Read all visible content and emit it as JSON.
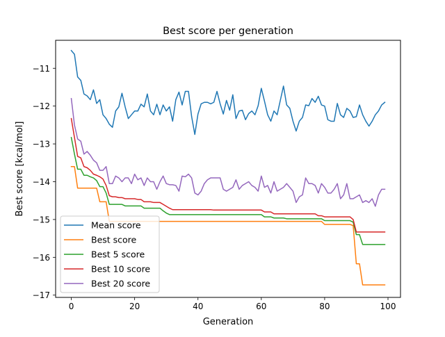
{
  "chart_data": {
    "type": "line",
    "title": "Best score per generation",
    "xlabel": "Generation",
    "ylabel": "Best score [kcal/mol]",
    "xlim": [
      -4.95,
      103.95
    ],
    "ylim": [
      -17.06,
      -10.26
    ],
    "xticks": [
      0,
      20,
      40,
      60,
      80,
      100
    ],
    "yticks": [
      -17,
      -16,
      -15,
      -14,
      -13,
      -12,
      -11
    ],
    "xtick_labels": [
      "0",
      "20",
      "40",
      "60",
      "80",
      "100"
    ],
    "ytick_labels": [
      "−17",
      "−16",
      "−15",
      "−14",
      "−13",
      "−12",
      "−11"
    ],
    "grid": false,
    "legend_position": "lower-left",
    "series": [
      {
        "name": "Mean score",
        "color": "#1f77b4",
        "values": [
          -10.53,
          -10.63,
          -11.23,
          -11.32,
          -11.68,
          -11.73,
          -11.83,
          -11.57,
          -11.93,
          -11.83,
          -12.23,
          -12.33,
          -12.48,
          -12.56,
          -12.13,
          -12.02,
          -11.66,
          -12.02,
          -12.33,
          -12.23,
          -12.13,
          -12.13,
          -11.95,
          -12.02,
          -11.68,
          -12.13,
          -12.23,
          -11.95,
          -12.23,
          -11.97,
          -12.13,
          -12.02,
          -12.4,
          -11.83,
          -11.63,
          -11.97,
          -11.61,
          -11.61,
          -12.28,
          -12.75,
          -12.21,
          -11.94,
          -11.9,
          -11.9,
          -11.94,
          -11.9,
          -11.61,
          -11.94,
          -12.21,
          -11.85,
          -12.11,
          -11.7,
          -12.33,
          -12.13,
          -12.11,
          -12.36,
          -12.2,
          -12.13,
          -12.23,
          -11.99,
          -11.53,
          -11.87,
          -12.23,
          -12.4,
          -12.13,
          -12.23,
          -11.85,
          -11.47,
          -11.97,
          -12.06,
          -12.4,
          -12.66,
          -12.4,
          -12.3,
          -11.97,
          -11.99,
          -11.8,
          -11.9,
          -11.74,
          -11.97,
          -12.0,
          -12.36,
          -12.4,
          -12.4,
          -11.93,
          -12.23,
          -12.3,
          -12.06,
          -12.13,
          -12.3,
          -12.28,
          -11.97,
          -12.23,
          -12.4,
          -12.53,
          -12.4,
          -12.23,
          -12.13,
          -11.97,
          -11.9
        ]
      },
      {
        "name": "Best score",
        "color": "#ff7f0e",
        "values": [
          -13.6,
          -13.6,
          -14.17,
          -14.17,
          -14.17,
          -14.17,
          -14.17,
          -14.17,
          -14.17,
          -14.53,
          -14.53,
          -14.53,
          -15.05,
          -15.05,
          -15.05,
          -15.05,
          -15.05,
          -15.05,
          -15.05,
          -15.05,
          -15.05,
          -15.05,
          -15.05,
          -15.05,
          -15.05,
          -15.05,
          -15.05,
          -15.05,
          -15.05,
          -15.05,
          -15.05,
          -15.05,
          -15.05,
          -15.05,
          -15.05,
          -15.05,
          -15.05,
          -15.05,
          -15.05,
          -15.05,
          -15.05,
          -15.05,
          -15.05,
          -15.05,
          -15.05,
          -15.05,
          -15.05,
          -15.05,
          -15.05,
          -15.05,
          -15.05,
          -15.05,
          -15.05,
          -15.05,
          -15.05,
          -15.05,
          -15.05,
          -15.05,
          -15.05,
          -15.05,
          -15.05,
          -15.05,
          -15.05,
          -15.05,
          -15.05,
          -15.05,
          -15.05,
          -15.05,
          -15.05,
          -15.05,
          -15.05,
          -15.05,
          -15.05,
          -15.05,
          -15.05,
          -15.05,
          -15.05,
          -15.05,
          -15.05,
          -15.05,
          -15.13,
          -15.13,
          -15.13,
          -15.13,
          -15.13,
          -15.13,
          -15.13,
          -15.13,
          -15.13,
          -15.16,
          -16.17,
          -16.17,
          -16.73,
          -16.73,
          -16.73,
          -16.73,
          -16.73,
          -16.73,
          -16.73,
          -16.73
        ]
      },
      {
        "name": "Best 5 score",
        "color": "#2ca02c",
        "values": [
          -12.83,
          -13.27,
          -13.67,
          -13.67,
          -13.83,
          -13.83,
          -13.87,
          -13.9,
          -13.97,
          -14.13,
          -14.13,
          -14.3,
          -14.6,
          -14.6,
          -14.6,
          -14.6,
          -14.6,
          -14.64,
          -14.64,
          -14.64,
          -14.64,
          -14.64,
          -14.64,
          -14.7,
          -14.7,
          -14.7,
          -14.7,
          -14.7,
          -14.7,
          -14.77,
          -14.83,
          -14.87,
          -14.87,
          -14.87,
          -14.87,
          -14.87,
          -14.87,
          -14.87,
          -14.87,
          -14.87,
          -14.87,
          -14.87,
          -14.87,
          -14.87,
          -14.87,
          -14.87,
          -14.87,
          -14.87,
          -14.87,
          -14.87,
          -14.87,
          -14.87,
          -14.87,
          -14.87,
          -14.87,
          -14.87,
          -14.87,
          -14.87,
          -14.87,
          -14.87,
          -14.87,
          -14.93,
          -14.93,
          -14.93,
          -14.96,
          -14.96,
          -14.96,
          -14.96,
          -14.98,
          -14.98,
          -14.98,
          -14.98,
          -14.98,
          -14.98,
          -14.98,
          -14.98,
          -14.98,
          -14.98,
          -14.98,
          -14.98,
          -15.03,
          -15.03,
          -15.03,
          -15.03,
          -15.03,
          -15.03,
          -15.03,
          -15.03,
          -15.03,
          -15.07,
          -15.4,
          -15.4,
          -15.66,
          -15.66,
          -15.66,
          -15.66,
          -15.66,
          -15.66,
          -15.66,
          -15.66
        ]
      },
      {
        "name": "Best 10 score",
        "color": "#d62728",
        "values": [
          -12.33,
          -12.83,
          -13.33,
          -13.37,
          -13.6,
          -13.63,
          -13.7,
          -13.8,
          -13.83,
          -13.87,
          -13.93,
          -14.1,
          -14.37,
          -14.4,
          -14.4,
          -14.42,
          -14.42,
          -14.45,
          -14.45,
          -14.45,
          -14.45,
          -14.47,
          -14.47,
          -14.53,
          -14.53,
          -14.53,
          -14.55,
          -14.55,
          -14.55,
          -14.6,
          -14.65,
          -14.7,
          -14.74,
          -14.74,
          -14.74,
          -14.74,
          -14.74,
          -14.74,
          -14.74,
          -14.74,
          -14.74,
          -14.74,
          -14.74,
          -14.74,
          -14.74,
          -14.75,
          -14.75,
          -14.75,
          -14.75,
          -14.75,
          -14.75,
          -14.75,
          -14.75,
          -14.75,
          -14.75,
          -14.75,
          -14.75,
          -14.75,
          -14.75,
          -14.75,
          -14.75,
          -14.8,
          -14.8,
          -14.8,
          -14.85,
          -14.85,
          -14.85,
          -14.85,
          -14.85,
          -14.85,
          -14.85,
          -14.85,
          -14.85,
          -14.85,
          -14.85,
          -14.85,
          -14.85,
          -14.85,
          -14.9,
          -14.9,
          -14.93,
          -14.93,
          -14.93,
          -14.93,
          -14.93,
          -14.93,
          -14.93,
          -14.93,
          -14.93,
          -15.0,
          -15.33,
          -15.33,
          -15.33,
          -15.33,
          -15.33,
          -15.33,
          -15.33,
          -15.33,
          -15.33,
          -15.33
        ]
      },
      {
        "name": "Best 20 score",
        "color": "#9467bd",
        "values": [
          -11.8,
          -12.5,
          -12.87,
          -12.93,
          -13.27,
          -13.2,
          -13.3,
          -13.43,
          -13.5,
          -13.7,
          -13.7,
          -13.6,
          -14.05,
          -14.05,
          -13.85,
          -13.9,
          -14.0,
          -13.9,
          -13.9,
          -14.05,
          -13.8,
          -13.95,
          -13.9,
          -14.1,
          -13.9,
          -14.0,
          -14.0,
          -14.2,
          -14.0,
          -13.85,
          -14.05,
          -14.08,
          -14.08,
          -14.1,
          -14.25,
          -13.85,
          -13.87,
          -13.8,
          -13.9,
          -14.3,
          -14.35,
          -14.25,
          -14.05,
          -13.95,
          -13.9,
          -13.9,
          -13.9,
          -13.9,
          -14.2,
          -14.25,
          -14.2,
          -14.15,
          -13.95,
          -14.2,
          -14.1,
          -14.05,
          -14.0,
          -14.1,
          -14.15,
          -14.25,
          -13.85,
          -14.15,
          -14.1,
          -14.3,
          -14.0,
          -14.25,
          -14.2,
          -14.15,
          -14.05,
          -14.15,
          -14.25,
          -14.55,
          -14.4,
          -14.35,
          -13.9,
          -14.05,
          -14.05,
          -14.1,
          -14.3,
          -14.05,
          -14.15,
          -14.3,
          -14.3,
          -14.2,
          -14.05,
          -14.45,
          -14.35,
          -14.05,
          -14.45,
          -14.45,
          -14.4,
          -14.35,
          -14.55,
          -14.5,
          -14.55,
          -14.45,
          -14.65,
          -14.35,
          -14.2,
          -14.2
        ]
      }
    ]
  }
}
